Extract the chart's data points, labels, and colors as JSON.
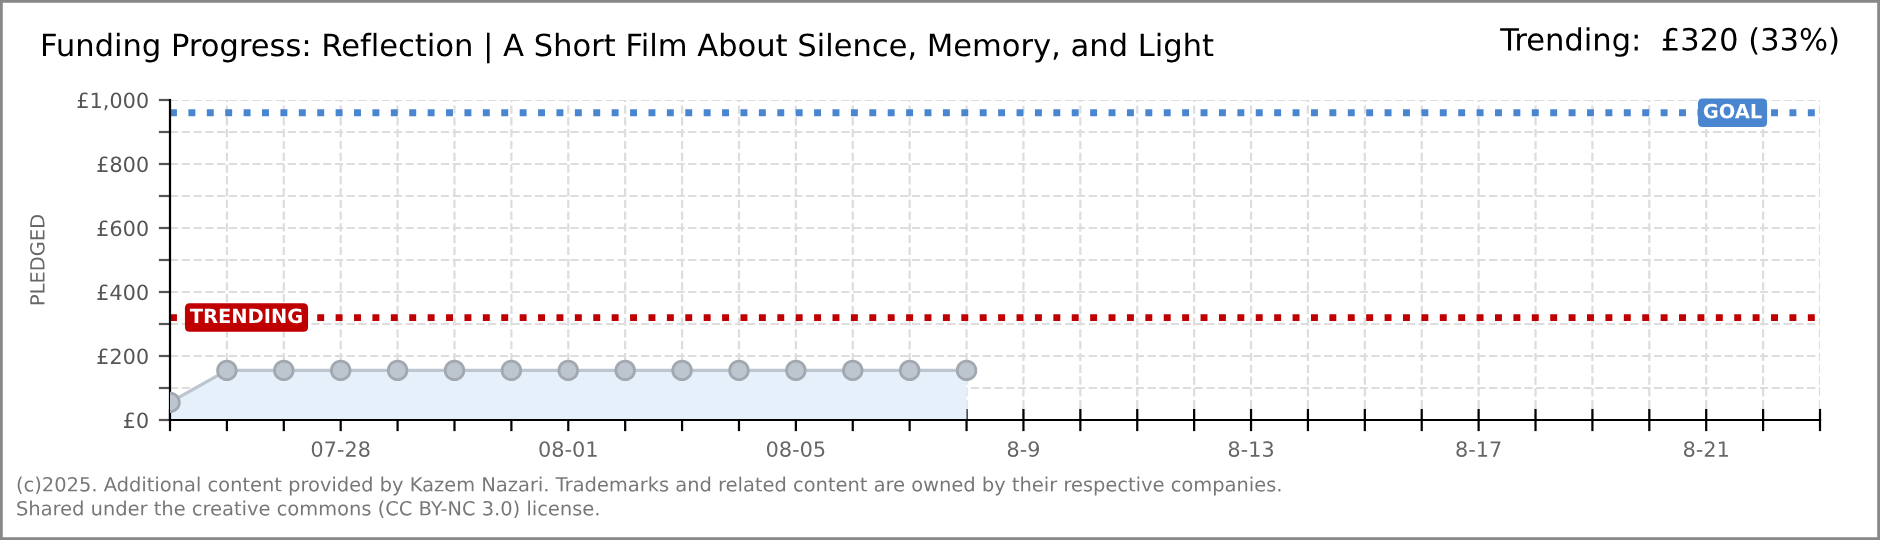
{
  "chart_data": {
    "type": "area",
    "title": "Funding Progress: Reflection | A Short Film About Silence, Memory, and Light",
    "subtitle": "Trending:  £320 (33%)",
    "ylabel": "PLEDGED",
    "x": [
      "2025-07-25",
      "2025-07-26",
      "2025-07-27",
      "2025-07-28",
      "2025-07-29",
      "2025-07-30",
      "2025-07-31",
      "2025-08-01",
      "2025-08-02",
      "2025-08-03",
      "2025-08-04",
      "2025-08-05",
      "2025-08-06",
      "2025-08-07",
      "2025-08-08"
    ],
    "series": [
      {
        "color": "#e6f0fb",
        "values": [
          55,
          155,
          155,
          155,
          155,
          155,
          155,
          155,
          155,
          155,
          155,
          155,
          155,
          155,
          155
        ]
      }
    ],
    "marker": "circle",
    "grid": true,
    "xlim": [
      "2025-07-25",
      "2025-08-23"
    ],
    "xticks": [
      {
        "value": "2025-07-25",
        "label": null
      },
      {
        "value": "2025-07-26",
        "label": null
      },
      {
        "value": "2025-07-27",
        "label": null
      },
      {
        "value": "2025-07-28",
        "label": "07-28"
      },
      {
        "value": "2025-07-29",
        "label": null
      },
      {
        "value": "2025-07-30",
        "label": null
      },
      {
        "value": "2025-07-31",
        "label": null
      },
      {
        "value": "2025-08-01",
        "label": "08-01"
      },
      {
        "value": "2025-08-02",
        "label": null
      },
      {
        "value": "2025-08-03",
        "label": null
      },
      {
        "value": "2025-08-04",
        "label": null
      },
      {
        "value": "2025-08-05",
        "label": "08-05"
      },
      {
        "value": "2025-08-06",
        "label": null
      },
      {
        "value": "2025-08-07",
        "label": null
      },
      {
        "value": "2025-08-08",
        "label": null
      },
      {
        "value": "2025-08-09",
        "label": "8-9"
      },
      {
        "value": "2025-08-10",
        "label": null
      },
      {
        "value": "2025-08-11",
        "label": null
      },
      {
        "value": "2025-08-12",
        "label": null
      },
      {
        "value": "2025-08-13",
        "label": "8-13"
      },
      {
        "value": "2025-08-14",
        "label": null
      },
      {
        "value": "2025-08-15",
        "label": null
      },
      {
        "value": "2025-08-16",
        "label": null
      },
      {
        "value": "2025-08-17",
        "label": "8-17"
      },
      {
        "value": "2025-08-18",
        "label": null
      },
      {
        "value": "2025-08-19",
        "label": null
      },
      {
        "value": "2025-08-20",
        "label": null
      },
      {
        "value": "2025-08-21",
        "label": "8-21"
      },
      {
        "value": "2025-08-22",
        "label": null
      },
      {
        "value": "2025-08-23",
        "label": null
      }
    ],
    "ylim": [
      0,
      1000
    ],
    "yticks": [
      {
        "value": 0,
        "label": "£0"
      },
      {
        "value": 100,
        "label": null
      },
      {
        "value": 200,
        "label": "£200"
      },
      {
        "value": 300,
        "label": null
      },
      {
        "value": 400,
        "label": "£400"
      },
      {
        "value": 500,
        "label": null
      },
      {
        "value": 600,
        "label": "£600"
      },
      {
        "value": 700,
        "label": null
      },
      {
        "value": 800,
        "label": "£800"
      },
      {
        "value": 900,
        "label": null
      },
      {
        "value": 1000,
        "label": "£1,000"
      }
    ],
    "ref_lines": [
      {
        "axis": "y",
        "value": 960,
        "label": "GOAL",
        "color": "#4a86d0",
        "line_style": "dotted"
      },
      {
        "axis": "y",
        "value": 320,
        "label": "TRENDING",
        "color": "#c00000",
        "line_style": "dotted"
      }
    ],
    "annotations": [
      "(c)2025. Additional content provided by Kazem Nazari. Trademarks and related content are owned by their respective companies.",
      "Shared under the creative commons (CC BY-NC 3.0) license."
    ]
  }
}
